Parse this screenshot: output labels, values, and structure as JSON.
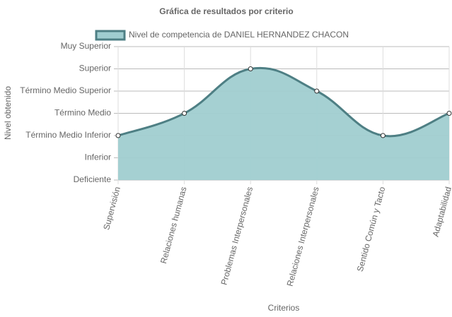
{
  "chart_data": {
    "type": "line",
    "title": "Gráfica de resultados por criterio",
    "x_label": "Criterios",
    "y_label": "Nivel obtenido",
    "categories": [
      "Supervisión",
      "Relaciones humanas",
      "Problemas Interpersonales",
      "Relaciones Interpersonales",
      "Sentido Común y Tacto",
      "Adaptabilidad"
    ],
    "series": [
      {
        "name": "Nivel de competencia de DANIEL HERNANDEZ CHACON",
        "color": "#4e7f84",
        "fill": "#a0cdd0",
        "values": [
          2,
          3,
          5,
          4,
          2,
          3
        ]
      }
    ],
    "ylim": [
      0,
      6
    ],
    "yticks": [
      {
        "value": 0,
        "label": "Deficiente"
      },
      {
        "value": 1,
        "label": "Inferior"
      },
      {
        "value": 2,
        "label": "Término Medio Inferior"
      },
      {
        "value": 3,
        "label": "Término Medio"
      },
      {
        "value": 4,
        "label": "Término Medio Superior"
      },
      {
        "value": 5,
        "label": "Superior"
      },
      {
        "value": 6,
        "label": "Muy Superior"
      }
    ],
    "grid": true
  }
}
